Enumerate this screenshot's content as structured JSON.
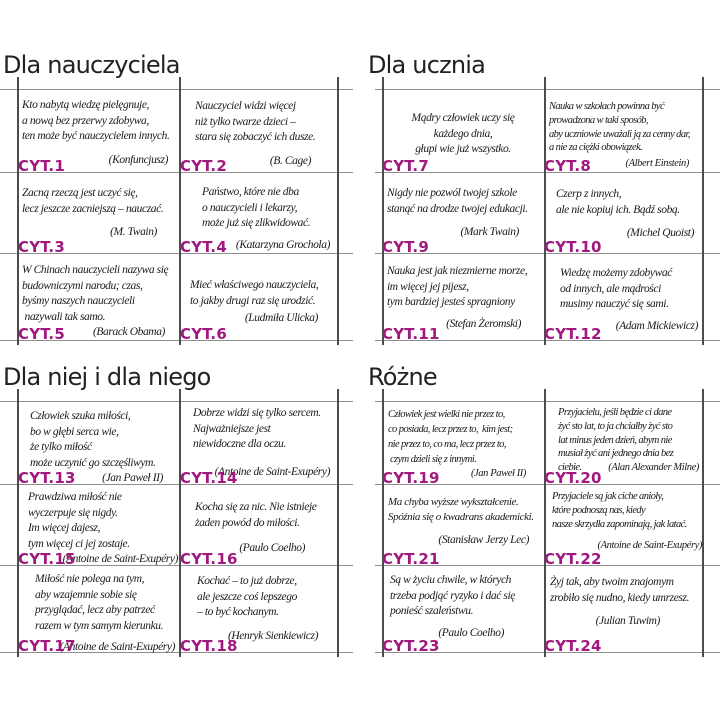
{
  "accent_color": "#a1187e",
  "sections": [
    {
      "title": "Dla nauczyciela",
      "cards": [
        {
          "id": "CYT.1",
          "quote": "Kto nabytą wiedzę pielęgnuje,\na nową bez przerwy zdobywa,\nten może być nauczycielem innych.",
          "author": "(Konfuncjusz)"
        },
        {
          "id": "CYT.2",
          "quote": "Nauczyciel widzi więcej\nniż tylko twarze dzieci –\nstara się zobaczyć ich dusze.",
          "author": "(B. Cage)"
        },
        {
          "id": "CYT.3",
          "quote": "Zacną rzeczą jest uczyć się,\nlecz jeszcze zacniejszą – nauczać.",
          "author": "(M. Twain)"
        },
        {
          "id": "CYT.4",
          "quote": "Państwo, które nie dba\no nauczycieli i lekarzy,\nmoże już się zlikwidować.",
          "author": "(Katarzyna Grochola)"
        },
        {
          "id": "CYT.5",
          "quote": "W Chinach nauczycieli nazywa się\nbudowniczymi narodu; czas,\nbyśmy naszych nauczycieli\n nazywali tak samo.",
          "author": "(Barack Obama)"
        },
        {
          "id": "CYT.6",
          "quote": "Mieć właściwego nauczyciela,\nto jakby drugi raz się urodzić.",
          "author": "(Ludmiła Ulicka)"
        }
      ]
    },
    {
      "title": "Dla ucznia",
      "cards": [
        {
          "id": "CYT.7",
          "quote": "Mądry człowiek uczy się\nkażdego dnia,\ngłupi wie już wszystko.",
          "author": ""
        },
        {
          "id": "CYT.8",
          "quote": "Nauka w szkołach powinna być\nprowadzona w taki sposób,\naby uczniowie uważali ją za cenny dar,\na nie za ciężki obowiązek.",
          "author": "(Albert Einstein)"
        },
        {
          "id": "CYT.9",
          "quote": "Nigdy nie pozwól twojej szkole\nstanąć na drodze twojej edukacji.",
          "author": "(Mark Twain)"
        },
        {
          "id": "CYT.10",
          "quote": "Czerp z innych,\nale nie kopiuj ich. Bądź sobą.",
          "author": "(Michel Quoist)"
        },
        {
          "id": "CYT.11",
          "quote": "Nauka jest jak niezmierne morze,\nim więcej jej pijesz,\ntym bardziej jesteś spragniony",
          "author": "(Stefan Żeromski)"
        },
        {
          "id": "CYT.12",
          "quote": "Wiedzę możemy zdobywać\nod innych, ale mądrości\nmusimy nauczyć się sami.",
          "author": "(Adam Mickiewicz)"
        }
      ]
    },
    {
      "title": "Dla niej i dla niego",
      "cards": [
        {
          "id": "CYT.13",
          "quote": "Człowiek szuka miłości,\nbo w głębi serca wie,\nże tylko miłość\nmoże uczynić go szczęśliwym.",
          "author": "(Jan Paweł II)"
        },
        {
          "id": "CYT.14",
          "quote": "Dobrze widzi się tylko sercem.\nNajważniejsze jest\nniewidoczne dla oczu.",
          "author": "(Antoine de Saint-Exupéry)"
        },
        {
          "id": "CYT.15",
          "quote": "Prawdziwa miłość nie\nwyczerpuje się nigdy.\nIm więcej dajesz,\ntym więcej ci jej zostaje.",
          "author": "(Antoine de Saint-Exupéry)"
        },
        {
          "id": "CYT.16",
          "quote": "Kocha się za nic. Nie istnieje\nżaden powód do miłości.",
          "author": "(Paulo Coelho)"
        },
        {
          "id": "CYT.17",
          "quote": "Miłość nie polega na tym,\naby wzajemnie sobie się\nprzyglądać, lecz aby patrzeć\nrazem w tym samym kierunku.",
          "author": "(Antoine de Saint-Exupéry)"
        },
        {
          "id": "CYT.18",
          "quote": "Kochać – to już dobrze,\nale jeszcze coś lepszego\n– to być kochanym.",
          "author": "(Henryk Sienkiewicz)"
        }
      ]
    },
    {
      "title": "Różne",
      "cards": [
        {
          "id": "CYT.19",
          "quote": "Człowiek jest wielki nie przez to,\nco posiada, lecz przez to,  kim jest;\nnie przez to, co ma, lecz przez to,\n czym dzieli się z innymi.",
          "author": "(Jan Paweł II)"
        },
        {
          "id": "CYT.20",
          "quote": "Przyjacielu, jeśli będzie ci dane\nżyć sto lat, to ja chciałby żyć sto\nlat minus jeden dzień, abym nie\nmusiał żyć ani jednego dnia bez\nciebie.",
          "author": "(Alan Alexander Milne)"
        },
        {
          "id": "CYT.21",
          "quote": "Ma chyba wyższe wykształcenie.\nSpóźnia się o kwadrans akademicki.",
          "author": "(Stanisław Jerzy Lec)"
        },
        {
          "id": "CYT.22",
          "quote": "Przyjaciele są jak ciche anioły,\nktóre podnoszą nas, kiedy\nnasze skrzydła zapominają, jak latać.",
          "author": "(Antoine de Saint-Exupéry)"
        },
        {
          "id": "CYT.23",
          "quote": "Są w życiu chwile, w których\ntrzeba podjąć ryzyko i dać się\nponieść szaleństwu.",
          "author": "(Paulo Coelho)"
        },
        {
          "id": "CYT.24",
          "quote": "Żyj tak, aby twoim znajomym\nzrobiło się nudno, kiedy umrzesz.",
          "author": "(Julian Tuwim)"
        }
      ]
    }
  ]
}
